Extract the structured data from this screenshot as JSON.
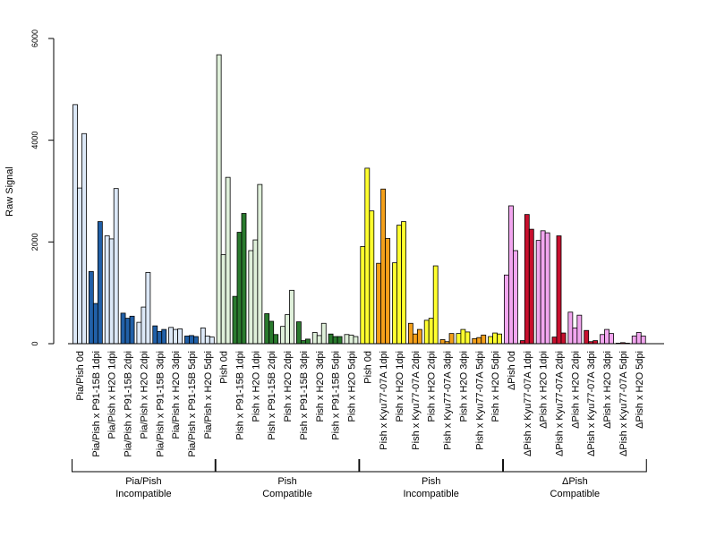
{
  "chart_data": {
    "type": "bar",
    "ylabel": "Raw Signal",
    "ylim": [
      0,
      6000
    ],
    "yticks": [
      0,
      2000,
      4000,
      6000
    ],
    "grid": false,
    "legend": "none",
    "categories": [
      "Pia/Pish 0d",
      "Pia/Pish x P91-15B 1dpi",
      "Pia/Pish x H2O 1dpi",
      "Pia/Pish x P91-15B 2dpi",
      "Pia/Pish x H2O 2dpi",
      "Pia/Pish x P91-15B 3dpi",
      "Pia/Pish x H2O 3dpi",
      "Pia/Pish x P91-15B 5dpi",
      "Pia/Pish x H2O 5dpi",
      "Pish 0d",
      "Pish x P91-15B 1dpi",
      "Pish x H2O 1dpi",
      "Pish x P91-15B 2dpi",
      "Pish x H2O 2dpi",
      "Pish x P91-15B 3dpi",
      "Pish x H2O 3dpi",
      "Pish x P91-15B 5dpi",
      "Pish x H2O 5dpi",
      "Pish 0d",
      "Pish x Kyu77-07A 1dpi",
      "Pish x H2O 1dpi",
      "Pish x Kyu77-07A 2dpi",
      "Pish x H2O 2dpi",
      "Pish x Kyu77-07A 3dpi",
      "Pish x H2O 3dpi",
      "Pish x Kyu77-07A 5dpi",
      "Pish x H2O 5dpi",
      "ΔPish 0d",
      "ΔPish x Kyu77-07A 1dpi",
      "ΔPish x H2O 1dpi",
      "ΔPish x Kyu77-07A 2dpi",
      "ΔPish x H2O 2dpi",
      "ΔPish x Kyu77-07A 3dpi",
      "ΔPish x H2O 3dpi",
      "ΔPish x Kyu77-07A 5dpi",
      "ΔPish x H2O 5dpi"
    ],
    "replicates": [
      [
        4700,
        3060,
        4130
      ],
      [
        1420,
        790,
        2400
      ],
      [
        2120,
        2060,
        3050
      ],
      [
        600,
        500,
        540
      ],
      [
        420,
        720,
        1400
      ],
      [
        350,
        240,
        280
      ],
      [
        320,
        280,
        290
      ],
      [
        150,
        160,
        140
      ],
      [
        310,
        150,
        130
      ],
      [
        5680,
        1750,
        3270
      ],
      [
        930,
        2190,
        2560
      ],
      [
        1830,
        2040,
        3130
      ],
      [
        590,
        440,
        180
      ],
      [
        340,
        570,
        1050
      ],
      [
        430,
        60,
        90
      ],
      [
        220,
        160,
        400
      ],
      [
        190,
        140,
        140
      ],
      [
        180,
        170,
        140
      ],
      [
        1910,
        3450,
        2610
      ],
      [
        1580,
        3040,
        2070
      ],
      [
        1590,
        2330,
        2400
      ],
      [
        400,
        190,
        280
      ],
      [
        460,
        500,
        1530
      ],
      [
        80,
        40,
        200
      ],
      [
        200,
        280,
        230
      ],
      [
        100,
        120,
        170
      ],
      [
        140,
        210,
        190
      ],
      [
        1350,
        2710,
        1830
      ],
      [
        60,
        2540,
        2250
      ],
      [
        2030,
        2220,
        2180
      ],
      [
        130,
        2120,
        210
      ],
      [
        620,
        310,
        560
      ],
      [
        260,
        40,
        60
      ],
      [
        180,
        280,
        200
      ],
      [
        10,
        20,
        10
      ],
      [
        150,
        220,
        150
      ]
    ],
    "colors": [
      "#dce8f7",
      "#2160a8",
      "#dce8f7",
      "#2160a8",
      "#dce8f7",
      "#2160a8",
      "#dce8f7",
      "#2160a8",
      "#dce8f7",
      "#dff0da",
      "#2a7a2e",
      "#dff0da",
      "#2a7a2e",
      "#dff0da",
      "#2a7a2e",
      "#dff0da",
      "#2a7a2e",
      "#dff0da",
      "#ffff2e",
      "#f5a01a",
      "#ffff2e",
      "#f5a01a",
      "#ffff2e",
      "#f5a01a",
      "#ffff2e",
      "#f5a01a",
      "#ffff2e",
      "#f2a6ef",
      "#c8102e",
      "#f2a6ef",
      "#c8102e",
      "#f2a6ef",
      "#c8102e",
      "#f2a6ef",
      "#c8102e",
      "#f2a6ef"
    ],
    "groups": [
      {
        "line1": "Pia/Pish",
        "line2": "Incompatible",
        "from": 0,
        "to": 8
      },
      {
        "line1": "Pish",
        "line2": "Compatible",
        "from": 9,
        "to": 17
      },
      {
        "line1": "Pish",
        "line2": "Incompatible",
        "from": 18,
        "to": 26
      },
      {
        "line1": "ΔPish",
        "line2": "Compatible",
        "from": 27,
        "to": 35
      }
    ]
  }
}
